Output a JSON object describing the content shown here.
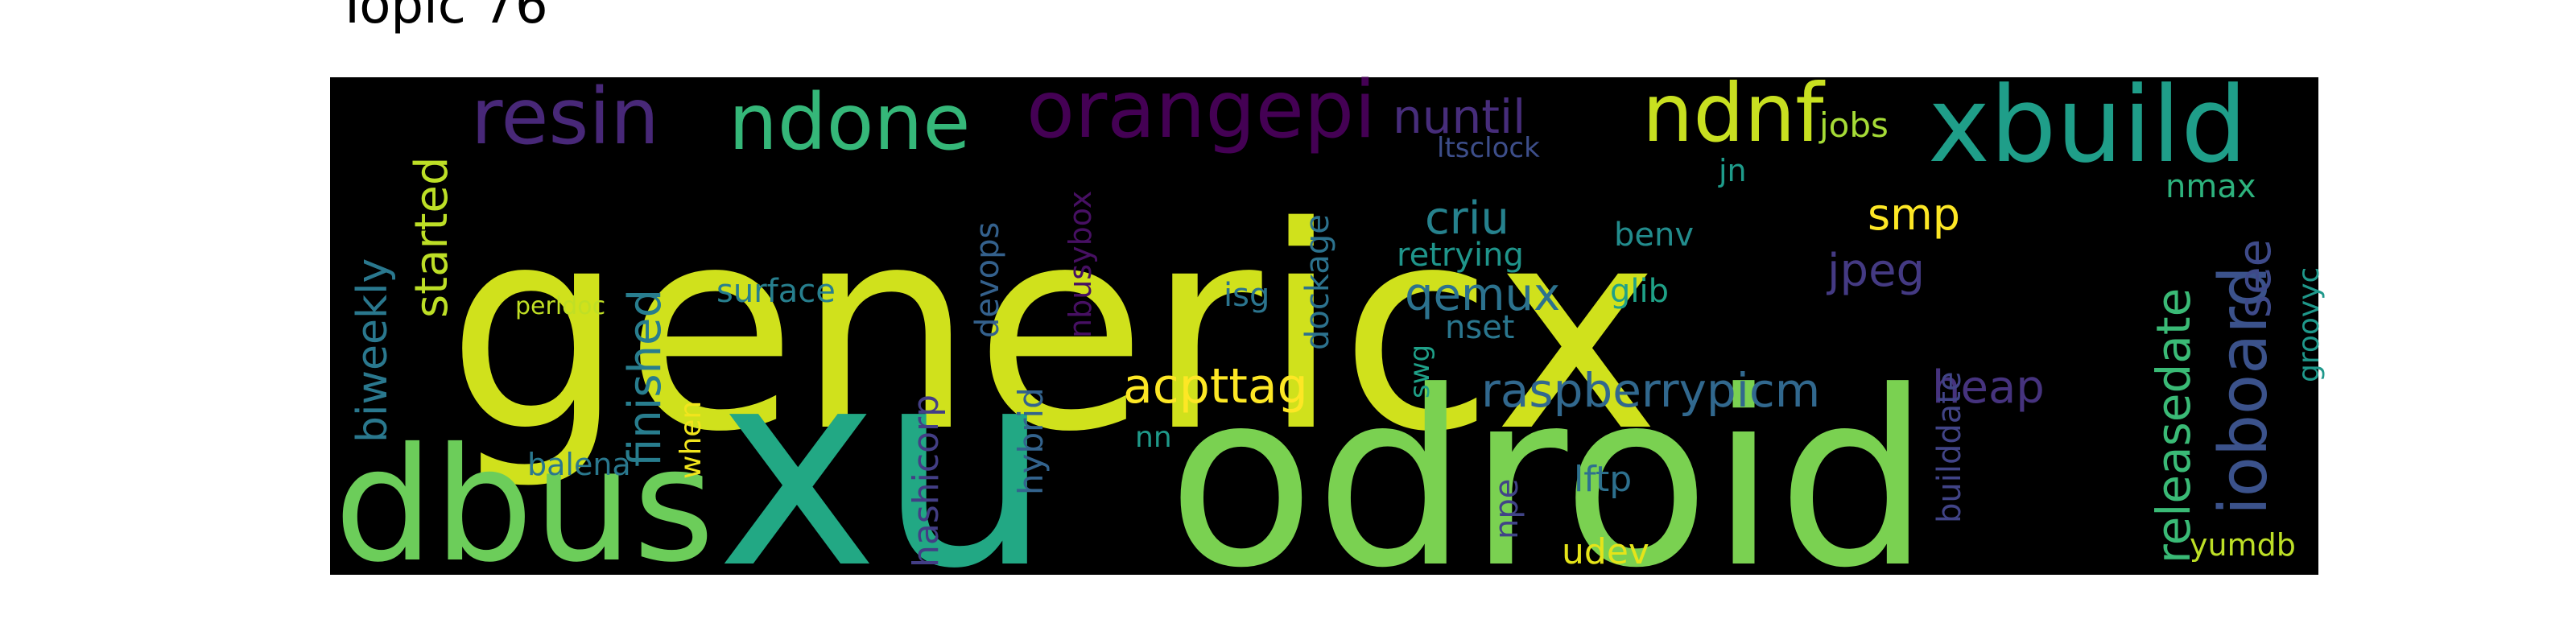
{
  "chart_data": {
    "type": "wordcloud",
    "title": "Topic 76",
    "background": "#000000",
    "palette": "viridis",
    "words": [
      {
        "text": "genericx",
        "color": "#d0e11c"
      },
      {
        "text": "xu",
        "color": "#22a884"
      },
      {
        "text": "odroid",
        "color": "#7ad151"
      },
      {
        "text": "dbus",
        "color": "#6ccd5a"
      },
      {
        "text": "xbuild",
        "color": "#1f9e89"
      },
      {
        "text": "ndnf",
        "color": "#c8e020"
      },
      {
        "text": "orangepi",
        "color": "#440154"
      },
      {
        "text": "resin",
        "color": "#482878"
      },
      {
        "text": "ndone",
        "color": "#35b779"
      },
      {
        "text": "ioboard",
        "color": "#3b528b"
      },
      {
        "text": "raspberrypicm",
        "color": "#31688e"
      },
      {
        "text": "releasedate",
        "color": "#3aba76"
      },
      {
        "text": "acpttag",
        "color": "#fde725"
      },
      {
        "text": "nuntil",
        "color": "#472d7b"
      },
      {
        "text": "qemux",
        "color": "#2c728e"
      },
      {
        "text": "criu",
        "color": "#26828e"
      },
      {
        "text": "jpeg",
        "color": "#443a83"
      },
      {
        "text": "see",
        "color": "#3e4a89"
      },
      {
        "text": "heap",
        "color": "#46337e"
      },
      {
        "text": "finished",
        "color": "#287d8e"
      },
      {
        "text": "started",
        "color": "#bddf26"
      },
      {
        "text": "biweekly",
        "color": "#2a788e"
      },
      {
        "text": "smp",
        "color": "#fde725"
      },
      {
        "text": "jobs",
        "color": "#a5db36"
      },
      {
        "text": "hashicorp",
        "color": "#433e85"
      },
      {
        "text": "hybrid",
        "color": "#33638d"
      },
      {
        "text": "nmax",
        "color": "#2db27d"
      },
      {
        "text": "surface",
        "color": "#277f8e"
      },
      {
        "text": "lftp",
        "color": "#2d708e"
      },
      {
        "text": "udev",
        "color": "#e5e419"
      },
      {
        "text": "builddate",
        "color": "#414487"
      },
      {
        "text": "yumdb",
        "color": "#bddf26"
      },
      {
        "text": "balena",
        "color": "#2a788e"
      },
      {
        "text": "devops",
        "color": "#34618d"
      },
      {
        "text": "dockage",
        "color": "#2c728e"
      },
      {
        "text": "retrying",
        "color": "#1f958b"
      },
      {
        "text": "nset",
        "color": "#2a768e"
      },
      {
        "text": "glib",
        "color": "#1fa187"
      },
      {
        "text": "benv",
        "color": "#228c8d"
      },
      {
        "text": "isg",
        "color": "#2b748e"
      },
      {
        "text": "nbusybox",
        "color": "#471063"
      },
      {
        "text": "groovyc",
        "color": "#1f988b"
      },
      {
        "text": "npe",
        "color": "#414487"
      },
      {
        "text": "when",
        "color": "#f1e51d"
      },
      {
        "text": "nn",
        "color": "#1f9a8a"
      },
      {
        "text": "jn",
        "color": "#1e9b8a"
      },
      {
        "text": "swg",
        "color": "#1fa088"
      },
      {
        "text": "perldoc",
        "color": "#c0df25"
      },
      {
        "text": "ltsclock",
        "color": "#3d4e8a"
      }
    ]
  }
}
